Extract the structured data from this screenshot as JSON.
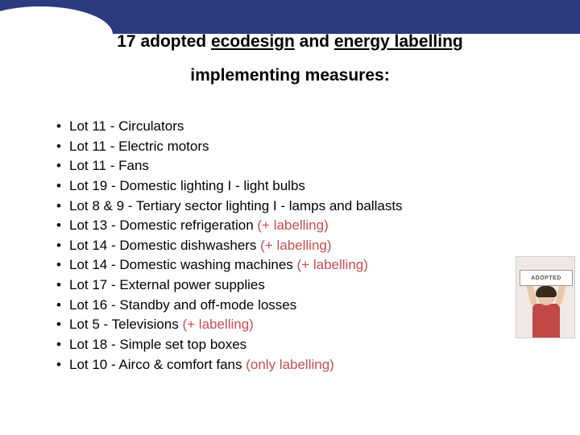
{
  "header": {
    "band_color": "#2d3a7f"
  },
  "title": {
    "line1_prefix": "17 adopted ",
    "line1_u1": "ecodesign",
    "line1_mid": " and ",
    "line1_u2": "energy labelling",
    "line2": "implementing measures:"
  },
  "items": [
    {
      "text": "Lot 11 - Circulators",
      "label": ""
    },
    {
      "text": "Lot 11 - Electric motors",
      "label": ""
    },
    {
      "text": "Lot 11 - Fans",
      "label": ""
    },
    {
      "text": "Lot 19 - Domestic lighting I - light bulbs",
      "label": ""
    },
    {
      "text": "Lot 8 & 9 - Tertiary sector lighting I - lamps and ballasts",
      "label": ""
    },
    {
      "text": "Lot 13 - Domestic refrigeration ",
      "label": "(+ labelling)"
    },
    {
      "text": "Lot 14 - Domestic dishwashers ",
      "label": "(+ labelling)"
    },
    {
      "text": "Lot 14 - Domestic washing machines ",
      "label": "(+ labelling)"
    },
    {
      "text": "Lot 17 - External power supplies",
      "label": ""
    },
    {
      "text": "Lot 16 - Standby and off-mode losses",
      "label": ""
    },
    {
      "text": "Lot 5 - Televisions ",
      "label": "(+ labelling)"
    },
    {
      "text": "Lot 18 - Simple set top boxes",
      "label": ""
    },
    {
      "text": "Lot 10 - Airco & comfort fans ",
      "label": "(only labelling)"
    }
  ],
  "image": {
    "sign_text": "ADOPTED"
  },
  "colors": {
    "label_color": "#c0504d",
    "text_color": "#000000",
    "bg": "#ffffff"
  }
}
